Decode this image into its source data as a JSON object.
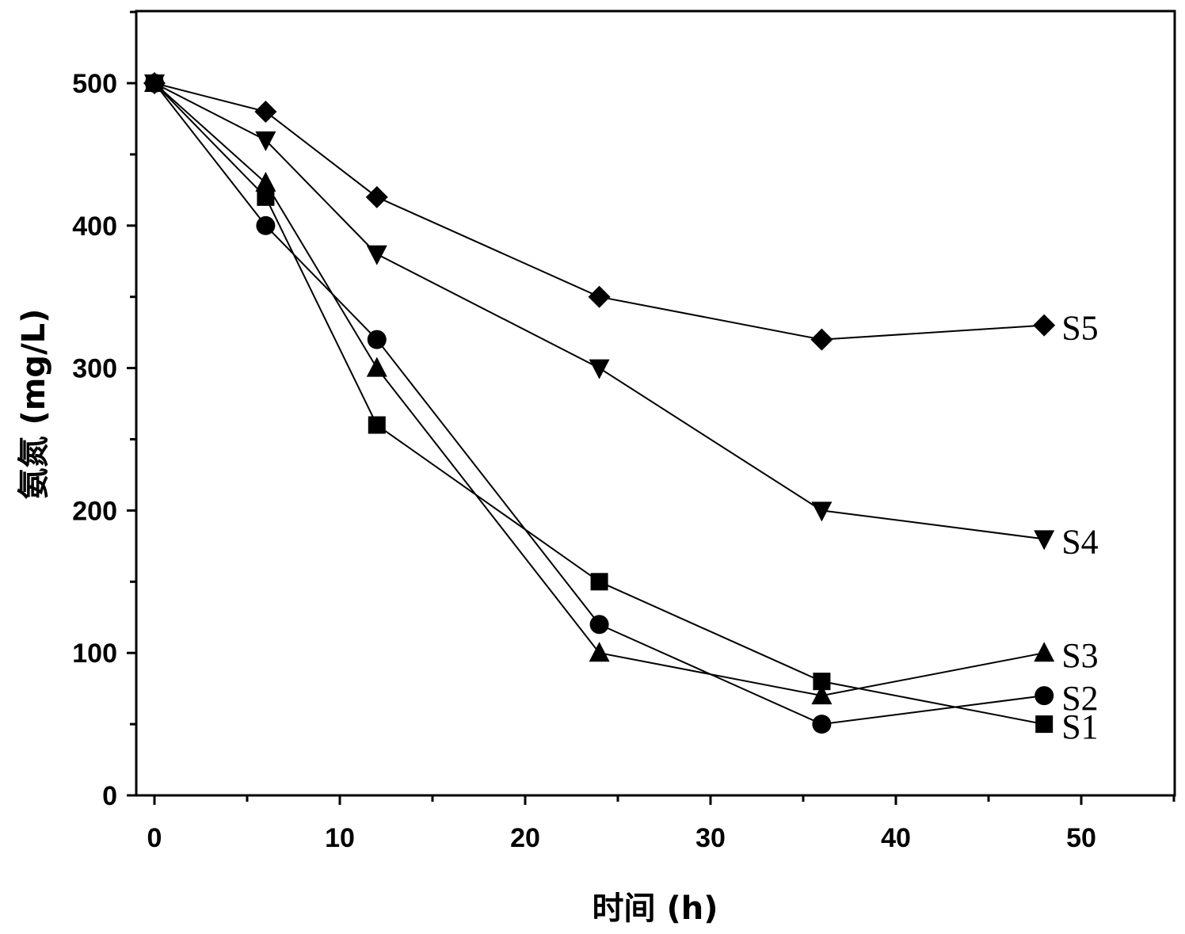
{
  "chart_data": {
    "type": "line",
    "xlabel": "时间 (h)",
    "ylabel": "氨氮 (mg/L)",
    "xlim": [
      -1,
      55
    ],
    "ylim": [
      0,
      550
    ],
    "xticks": [
      0,
      10,
      20,
      30,
      40,
      50
    ],
    "yticks": [
      0,
      100,
      200,
      300,
      400,
      500
    ],
    "grid": false,
    "legend": "none",
    "x": [
      0,
      6,
      12,
      24,
      36,
      48
    ],
    "series": [
      {
        "name": "S1",
        "marker": "square",
        "values": [
          500,
          420,
          260,
          150,
          80,
          50
        ]
      },
      {
        "name": "S2",
        "marker": "circle",
        "values": [
          500,
          400,
          320,
          120,
          50,
          70
        ]
      },
      {
        "name": "S3",
        "marker": "triangle-up",
        "values": [
          500,
          430,
          300,
          100,
          70,
          100
        ]
      },
      {
        "name": "S4",
        "marker": "triangle-down",
        "values": [
          500,
          460,
          380,
          300,
          200,
          180
        ]
      },
      {
        "name": "S5",
        "marker": "diamond",
        "values": [
          500,
          480,
          420,
          350,
          320,
          330
        ]
      }
    ],
    "colors": {
      "line": "#000000",
      "marker": "#000000",
      "background": "#ffffff"
    }
  }
}
